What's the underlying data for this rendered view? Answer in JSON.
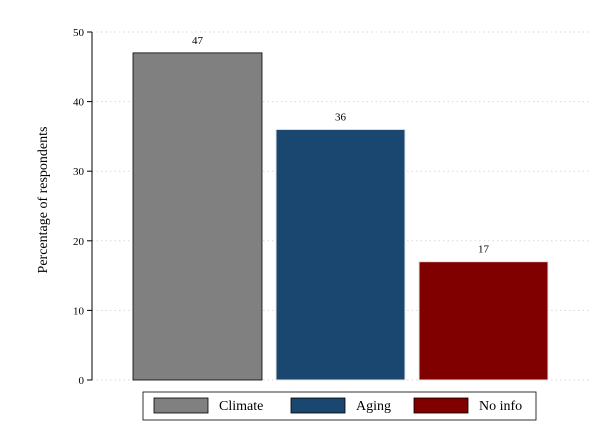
{
  "chart_data": {
    "type": "bar",
    "categories": [
      "Climate",
      "Aging",
      "No info"
    ],
    "values": [
      47,
      36,
      17
    ],
    "value_labels": [
      "47",
      "36",
      "17"
    ],
    "colors": [
      "#808080",
      "#1a476f",
      "#800000"
    ],
    "title": "",
    "xlabel": "",
    "ylabel": "Percentage of respondents",
    "ylim": [
      0,
      50
    ],
    "yticks": [
      0,
      10,
      20,
      30,
      40,
      50
    ],
    "ytick_labels": [
      "0",
      "10",
      "20",
      "30",
      "40",
      "50"
    ],
    "grid": true,
    "legend": {
      "placement": "bottom",
      "entries": [
        "Climate",
        "Aging",
        "No info"
      ]
    }
  }
}
